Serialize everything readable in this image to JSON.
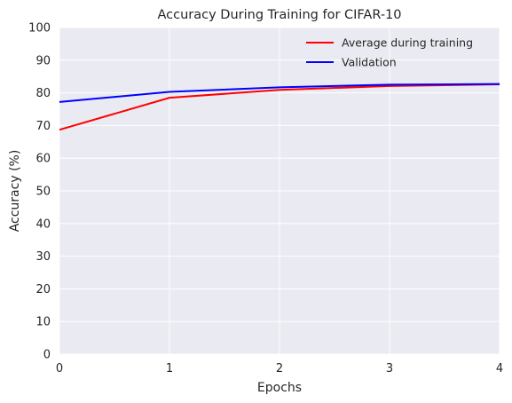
{
  "chart_data": {
    "type": "line",
    "title": "Accuracy During Training for CIFAR-10",
    "xlabel": "Epochs",
    "ylabel": "Accuracy (%)",
    "x": [
      0,
      1,
      2,
      3,
      4
    ],
    "xlim": [
      0,
      4
    ],
    "ylim": [
      0,
      100
    ],
    "xticks": [
      "0",
      "1",
      "2",
      "3",
      "4"
    ],
    "yticks": [
      "0",
      "10",
      "20",
      "30",
      "40",
      "50",
      "60",
      "70",
      "80",
      "90",
      "100"
    ],
    "grid": true,
    "legend_position": "top-right",
    "background": "#eaeaf2",
    "series": [
      {
        "name": "Average during training",
        "color": "#ff0000",
        "values": [
          68.7,
          78.5,
          80.9,
          82.1,
          82.6
        ]
      },
      {
        "name": "Validation",
        "color": "#0000ff",
        "values": [
          77.2,
          80.3,
          81.7,
          82.5,
          82.7
        ]
      }
    ]
  }
}
